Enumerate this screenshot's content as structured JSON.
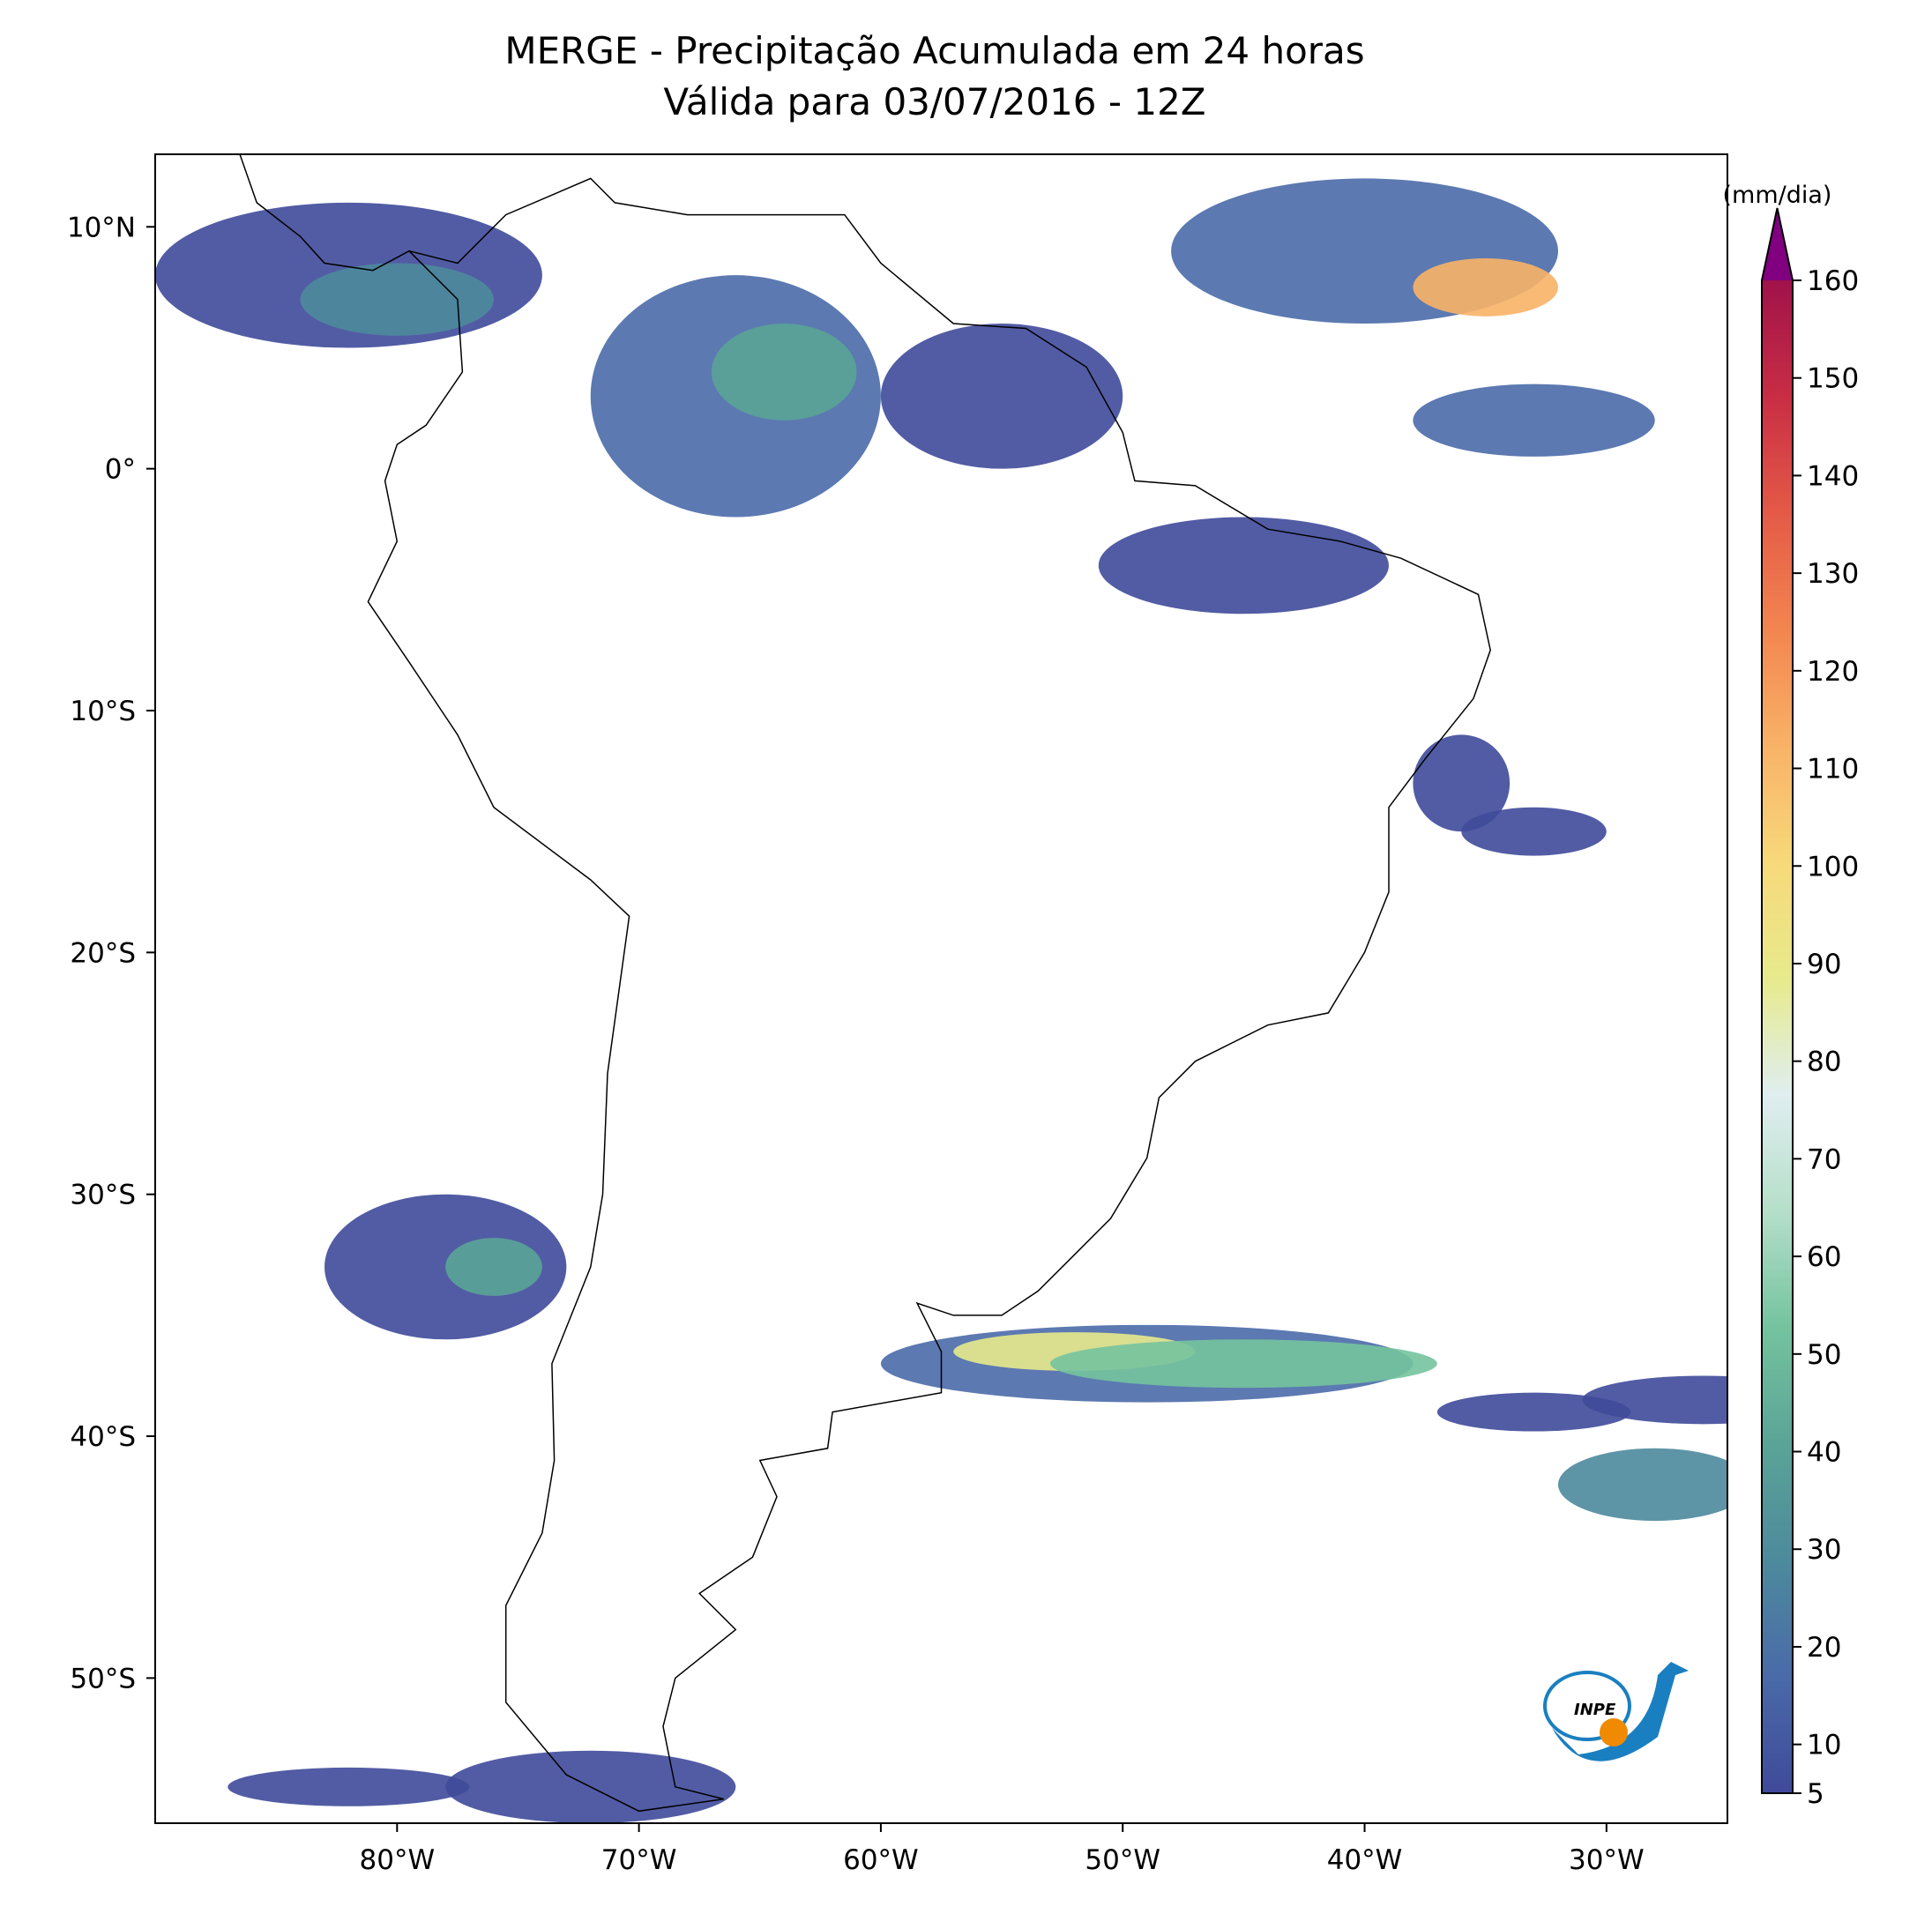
{
  "chart_data": {
    "type": "precip-map",
    "title": "MERGE - Precipitação Acumulada em 24 horas",
    "subtitle": "Válida para 03/07/2016 - 12Z",
    "xlim": [
      -90,
      -25
    ],
    "ylim": [
      -56,
      13
    ],
    "xticks": [
      {
        "value": -80,
        "label": "80°W"
      },
      {
        "value": -70,
        "label": "70°W"
      },
      {
        "value": -60,
        "label": "60°W"
      },
      {
        "value": -50,
        "label": "50°W"
      },
      {
        "value": -40,
        "label": "40°W"
      },
      {
        "value": -30,
        "label": "30°W"
      }
    ],
    "yticks": [
      {
        "value": 10,
        "label": "10°N"
      },
      {
        "value": 0,
        "label": "0°"
      },
      {
        "value": -10,
        "label": "10°S"
      },
      {
        "value": -20,
        "label": "20°S"
      },
      {
        "value": -30,
        "label": "30°S"
      },
      {
        "value": -40,
        "label": "40°S"
      },
      {
        "value": -50,
        "label": "50°S"
      }
    ],
    "colorbar": {
      "label": "(mm/dia)",
      "lim": [
        5,
        160
      ],
      "ticks": [
        5,
        10,
        20,
        30,
        40,
        50,
        60,
        70,
        80,
        90,
        100,
        110,
        120,
        130,
        140,
        150,
        160
      ],
      "colors": [
        "#3f4a9a",
        "#4a6aa8",
        "#4d8a9c",
        "#5aa497",
        "#74c39e",
        "#b5dfc9",
        "#dfeef0",
        "#e7ea8c",
        "#f7d97a",
        "#f8b267",
        "#f38550",
        "#e45a47",
        "#c92d44",
        "#a0124a"
      ],
      "extend_color": "#800080"
    },
    "logo": "INPE"
  }
}
